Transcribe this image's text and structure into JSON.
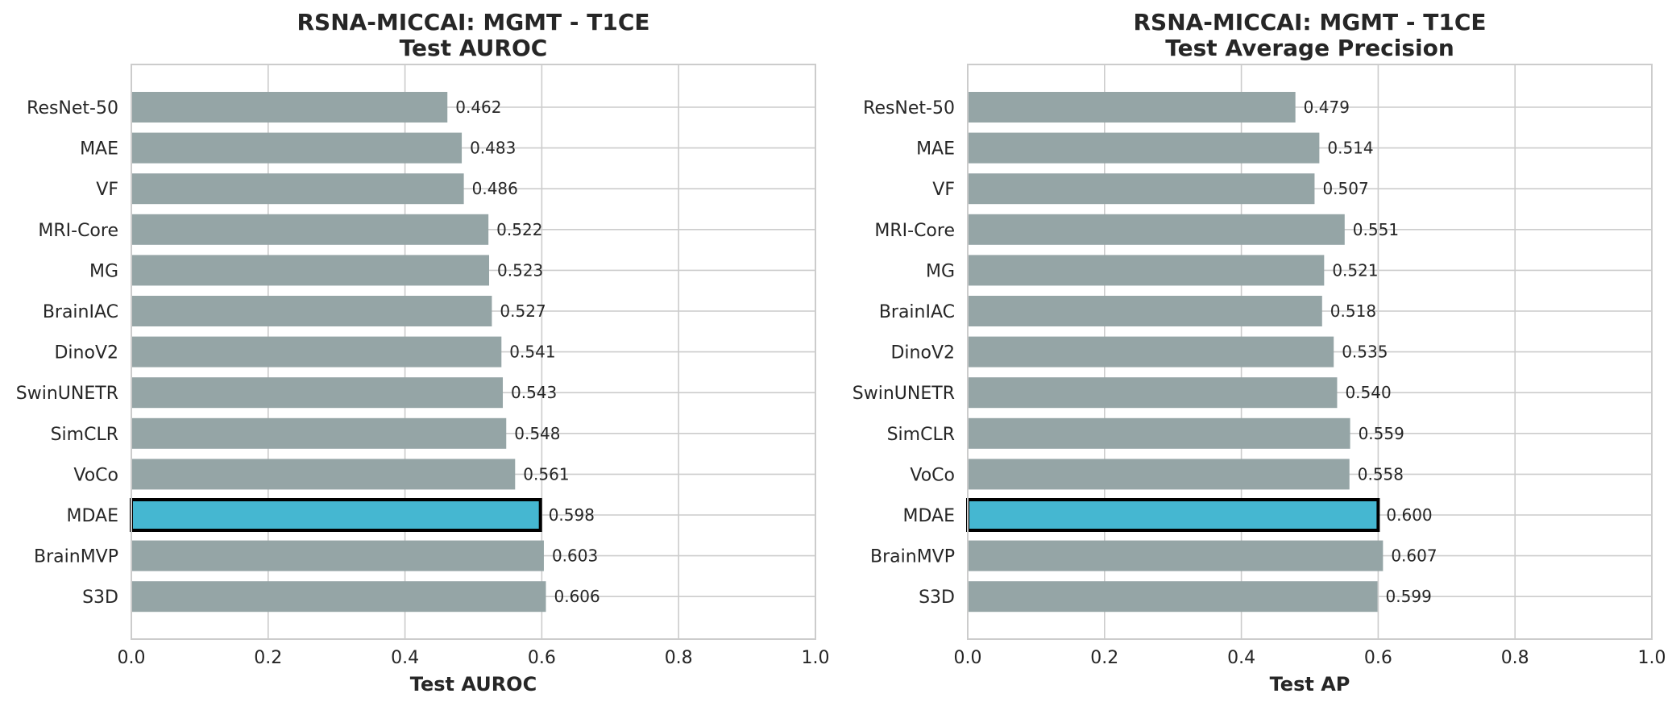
{
  "chart_data": [
    {
      "type": "bar",
      "orientation": "horizontal",
      "title": [
        "RSNA-MICCAI: MGMT - T1CE",
        "Test AUROC"
      ],
      "xlabel": "Test AUROC",
      "ylabel": "",
      "xlim": [
        0,
        1
      ],
      "xticks": [
        "0.0",
        "0.2",
        "0.4",
        "0.6",
        "0.8",
        "1.0"
      ],
      "grid": true,
      "categories": [
        "ResNet-50",
        "MAE",
        "VF",
        "MRI-Core",
        "MG",
        "BrainIAC",
        "DinoV2",
        "SwinUNETR",
        "SimCLR",
        "VoCo",
        "MDAE",
        "BrainMVP",
        "S3D"
      ],
      "values": [
        0.462,
        0.483,
        0.486,
        0.522,
        0.523,
        0.527,
        0.541,
        0.543,
        0.548,
        0.561,
        0.598,
        0.603,
        0.606
      ],
      "value_labels": [
        "0.462",
        "0.483",
        "0.486",
        "0.522",
        "0.523",
        "0.527",
        "0.541",
        "0.543",
        "0.548",
        "0.561",
        "0.598",
        "0.603",
        "0.606"
      ],
      "highlight": "MDAE"
    },
    {
      "type": "bar",
      "orientation": "horizontal",
      "title": [
        "RSNA-MICCAI: MGMT - T1CE",
        "Test Average Precision"
      ],
      "xlabel": "Test AP",
      "ylabel": "",
      "xlim": [
        0,
        1
      ],
      "xticks": [
        "0.0",
        "0.2",
        "0.4",
        "0.6",
        "0.8",
        "1.0"
      ],
      "grid": true,
      "categories": [
        "ResNet-50",
        "MAE",
        "VF",
        "MRI-Core",
        "MG",
        "BrainIAC",
        "DinoV2",
        "SwinUNETR",
        "SimCLR",
        "VoCo",
        "MDAE",
        "BrainMVP",
        "S3D"
      ],
      "values": [
        0.479,
        0.514,
        0.507,
        0.551,
        0.521,
        0.518,
        0.535,
        0.54,
        0.559,
        0.558,
        0.6,
        0.607,
        0.599
      ],
      "value_labels": [
        "0.479",
        "0.514",
        "0.507",
        "0.551",
        "0.521",
        "0.518",
        "0.535",
        "0.540",
        "0.559",
        "0.558",
        "0.600",
        "0.607",
        "0.599"
      ],
      "highlight": "MDAE"
    }
  ],
  "colors": {
    "bar": "#95a5a6",
    "highlight": "#45b7d1",
    "highlight_edge": "#000000",
    "grid": "#cccccc",
    "spine": "#cccccc",
    "text": "#262626"
  }
}
